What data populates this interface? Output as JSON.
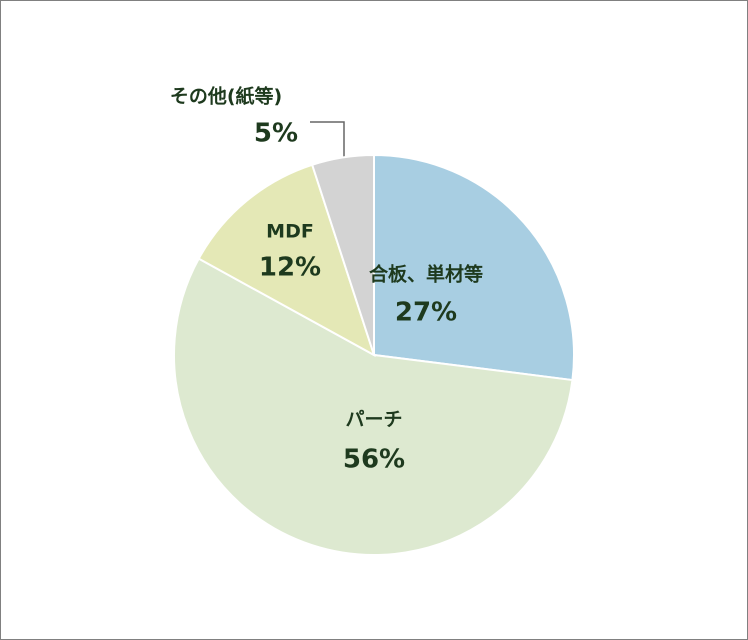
{
  "chart_data": {
    "type": "pie",
    "categories": [
      "合板、単材等",
      "パーチ",
      "MDF",
      "その他(紙等)"
    ],
    "values": [
      27,
      56,
      12,
      5
    ],
    "value_labels": [
      "27%",
      "56%",
      "12%",
      "5%"
    ],
    "colors": [
      "#a8cee2",
      "#dde9d0",
      "#e4e8b6",
      "#d3d3d3"
    ]
  }
}
